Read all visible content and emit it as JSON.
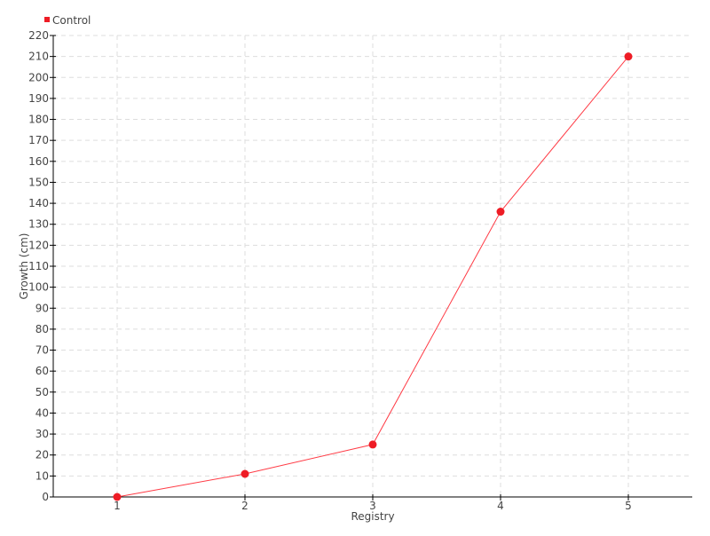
{
  "chart_data": {
    "type": "line",
    "title": "",
    "xlabel": "Registry",
    "ylabel": "Growth (cm)",
    "x": [
      1,
      2,
      3,
      4,
      5
    ],
    "xlim": [
      0.5,
      5.5
    ],
    "ylim": [
      0,
      220
    ],
    "ytick_step": 10,
    "grid": true,
    "legend_position": "top-left",
    "series": [
      {
        "name": "Control",
        "color": "#ee1c25",
        "values": [
          0,
          11,
          25,
          136,
          210
        ]
      }
    ]
  }
}
